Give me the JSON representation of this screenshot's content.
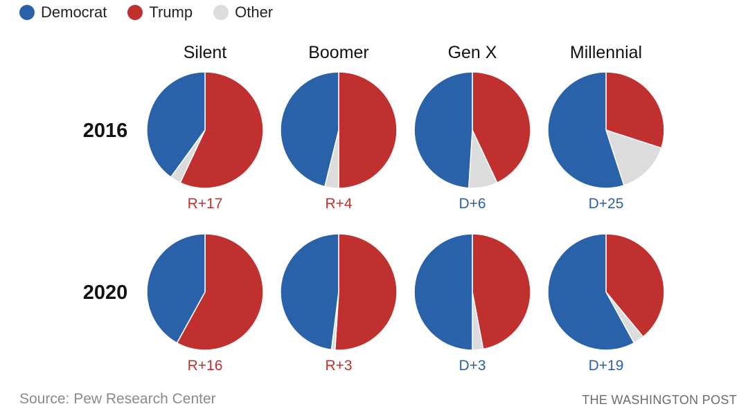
{
  "legend": [
    {
      "label": "Democrat",
      "color": "#2a62a9"
    },
    {
      "label": "Trump",
      "color": "#c0302e"
    },
    {
      "label": "Other",
      "color": "#dcdcdc"
    }
  ],
  "chart_data": {
    "type": "pie",
    "title": "",
    "generations": [
      "Silent",
      "Boomer",
      "Gen X",
      "Millennial"
    ],
    "years": [
      "2016",
      "2020"
    ],
    "series_order": [
      "Democrat",
      "Trump",
      "Other"
    ],
    "pies": [
      {
        "year": "2016",
        "generation": "Silent",
        "values": {
          "Democrat": 40,
          "Trump": 57,
          "Other": 3
        },
        "margin": "R+17",
        "winner": "Trump"
      },
      {
        "year": "2016",
        "generation": "Boomer",
        "values": {
          "Democrat": 48,
          "Trump": 52,
          "Other": 4
        },
        "margin": "R+4",
        "winner": "Trump"
      },
      {
        "year": "2016",
        "generation": "Gen X",
        "values": {
          "Democrat": 49,
          "Trump": 43,
          "Other": 8
        },
        "margin": "D+6",
        "winner": "Democrat"
      },
      {
        "year": "2016",
        "generation": "Millennial",
        "values": {
          "Democrat": 55,
          "Trump": 30,
          "Other": 15
        },
        "margin": "D+25",
        "winner": "Democrat"
      },
      {
        "year": "2020",
        "generation": "Silent",
        "values": {
          "Democrat": 42,
          "Trump": 58,
          "Other": 0
        },
        "margin": "R+16",
        "winner": "Trump"
      },
      {
        "year": "2020",
        "generation": "Boomer",
        "values": {
          "Democrat": 48,
          "Trump": 51,
          "Other": 1
        },
        "margin": "R+3",
        "winner": "Trump"
      },
      {
        "year": "2020",
        "generation": "Gen X",
        "values": {
          "Democrat": 50,
          "Trump": 47,
          "Other": 3
        },
        "margin": "D+3",
        "winner": "Democrat"
      },
      {
        "year": "2020",
        "generation": "Millennial",
        "values": {
          "Democrat": 58,
          "Trump": 39,
          "Other": 3
        },
        "margin": "D+19",
        "winner": "Democrat"
      }
    ]
  },
  "source": "Source: Pew Research Center",
  "credit": "THE WASHINGTON POST"
}
